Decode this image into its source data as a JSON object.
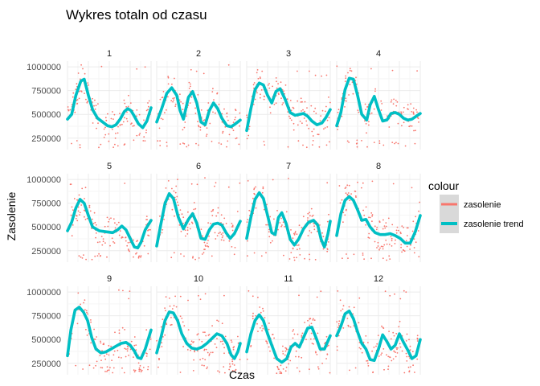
{
  "chart_data": {
    "type": "faceted-line-scatter",
    "title": "Wykres totaln od czasu",
    "xlabel": "Czas",
    "ylabel": "Zasolenie",
    "y_ticks": [
      250000,
      500000,
      750000,
      1000000
    ],
    "y_tick_labels": [
      "250000",
      "500000",
      "750000",
      "1000000"
    ],
    "ylim": [
      130000,
      1060000
    ],
    "xlim": [
      0,
      1
    ],
    "x_tick_labels_shown": false,
    "grid": true,
    "legend": {
      "title": "colour",
      "placement": "right",
      "entries": [
        {
          "label": "zasolenie",
          "color": "#F8766D",
          "kind": "points"
        },
        {
          "label": "zasolenie trend",
          "color": "#00BFC4",
          "kind": "line"
        }
      ]
    },
    "facets": [
      {
        "label": "1",
        "trend": [
          [
            0.0,
            450000
          ],
          [
            0.05,
            500000
          ],
          [
            0.1,
            700000
          ],
          [
            0.16,
            850000
          ],
          [
            0.2,
            870000
          ],
          [
            0.25,
            700000
          ],
          [
            0.3,
            550000
          ],
          [
            0.36,
            460000
          ],
          [
            0.42,
            420000
          ],
          [
            0.48,
            380000
          ],
          [
            0.53,
            370000
          ],
          [
            0.58,
            390000
          ],
          [
            0.63,
            450000
          ],
          [
            0.68,
            530000
          ],
          [
            0.72,
            560000
          ],
          [
            0.76,
            540000
          ],
          [
            0.8,
            480000
          ],
          [
            0.85,
            400000
          ],
          [
            0.9,
            360000
          ],
          [
            0.95,
            430000
          ],
          [
            1.0,
            570000
          ]
        ]
      },
      {
        "label": "2",
        "trend": [
          [
            0.0,
            420000
          ],
          [
            0.06,
            560000
          ],
          [
            0.12,
            720000
          ],
          [
            0.18,
            780000
          ],
          [
            0.24,
            700000
          ],
          [
            0.28,
            540000
          ],
          [
            0.32,
            450000
          ],
          [
            0.38,
            680000
          ],
          [
            0.43,
            740000
          ],
          [
            0.48,
            620000
          ],
          [
            0.53,
            420000
          ],
          [
            0.58,
            390000
          ],
          [
            0.63,
            540000
          ],
          [
            0.68,
            620000
          ],
          [
            0.73,
            560000
          ],
          [
            0.78,
            460000
          ],
          [
            0.84,
            380000
          ],
          [
            0.89,
            370000
          ],
          [
            0.94,
            400000
          ],
          [
            1.0,
            440000
          ]
        ]
      },
      {
        "label": "3",
        "trend": [
          [
            0.0,
            330000
          ],
          [
            0.05,
            560000
          ],
          [
            0.1,
            760000
          ],
          [
            0.15,
            830000
          ],
          [
            0.2,
            810000
          ],
          [
            0.25,
            700000
          ],
          [
            0.3,
            620000
          ],
          [
            0.35,
            740000
          ],
          [
            0.4,
            770000
          ],
          [
            0.46,
            660000
          ],
          [
            0.52,
            520000
          ],
          [
            0.58,
            490000
          ],
          [
            0.63,
            500000
          ],
          [
            0.68,
            510000
          ],
          [
            0.73,
            480000
          ],
          [
            0.78,
            430000
          ],
          [
            0.84,
            390000
          ],
          [
            0.9,
            410000
          ],
          [
            0.95,
            470000
          ],
          [
            1.0,
            550000
          ]
        ]
      },
      {
        "label": "4",
        "trend": [
          [
            0.0,
            380000
          ],
          [
            0.05,
            520000
          ],
          [
            0.1,
            760000
          ],
          [
            0.15,
            880000
          ],
          [
            0.2,
            870000
          ],
          [
            0.25,
            700000
          ],
          [
            0.3,
            500000
          ],
          [
            0.36,
            440000
          ],
          [
            0.4,
            600000
          ],
          [
            0.45,
            690000
          ],
          [
            0.5,
            550000
          ],
          [
            0.55,
            430000
          ],
          [
            0.6,
            440000
          ],
          [
            0.65,
            510000
          ],
          [
            0.7,
            520000
          ],
          [
            0.75,
            500000
          ],
          [
            0.8,
            460000
          ],
          [
            0.85,
            440000
          ],
          [
            0.9,
            450000
          ],
          [
            0.95,
            480000
          ],
          [
            1.0,
            510000
          ]
        ]
      },
      {
        "label": "5",
        "trend": [
          [
            0.0,
            460000
          ],
          [
            0.05,
            550000
          ],
          [
            0.1,
            700000
          ],
          [
            0.15,
            790000
          ],
          [
            0.2,
            750000
          ],
          [
            0.25,
            620000
          ],
          [
            0.3,
            500000
          ],
          [
            0.38,
            460000
          ],
          [
            0.46,
            450000
          ],
          [
            0.54,
            440000
          ],
          [
            0.6,
            470000
          ],
          [
            0.65,
            510000
          ],
          [
            0.7,
            470000
          ],
          [
            0.75,
            380000
          ],
          [
            0.8,
            290000
          ],
          [
            0.84,
            280000
          ],
          [
            0.88,
            340000
          ],
          [
            0.93,
            470000
          ],
          [
            1.0,
            570000
          ]
        ]
      },
      {
        "label": "6",
        "trend": [
          [
            0.0,
            300000
          ],
          [
            0.05,
            530000
          ],
          [
            0.1,
            750000
          ],
          [
            0.15,
            850000
          ],
          [
            0.2,
            800000
          ],
          [
            0.26,
            600000
          ],
          [
            0.32,
            480000
          ],
          [
            0.38,
            580000
          ],
          [
            0.43,
            640000
          ],
          [
            0.48,
            540000
          ],
          [
            0.53,
            380000
          ],
          [
            0.58,
            370000
          ],
          [
            0.63,
            470000
          ],
          [
            0.68,
            530000
          ],
          [
            0.73,
            540000
          ],
          [
            0.78,
            520000
          ],
          [
            0.83,
            440000
          ],
          [
            0.88,
            380000
          ],
          [
            0.93,
            430000
          ],
          [
            1.0,
            560000
          ]
        ]
      },
      {
        "label": "7",
        "trend": [
          [
            0.0,
            380000
          ],
          [
            0.05,
            600000
          ],
          [
            0.1,
            790000
          ],
          [
            0.15,
            860000
          ],
          [
            0.2,
            800000
          ],
          [
            0.25,
            620000
          ],
          [
            0.3,
            440000
          ],
          [
            0.34,
            420000
          ],
          [
            0.38,
            600000
          ],
          [
            0.42,
            650000
          ],
          [
            0.47,
            540000
          ],
          [
            0.52,
            370000
          ],
          [
            0.57,
            310000
          ],
          [
            0.62,
            370000
          ],
          [
            0.68,
            480000
          ],
          [
            0.74,
            550000
          ],
          [
            0.8,
            570000
          ],
          [
            0.85,
            520000
          ],
          [
            0.89,
            370000
          ],
          [
            0.93,
            290000
          ],
          [
            0.97,
            420000
          ],
          [
            1.0,
            560000
          ]
        ]
      },
      {
        "label": "8",
        "trend": [
          [
            0.0,
            410000
          ],
          [
            0.05,
            640000
          ],
          [
            0.1,
            780000
          ],
          [
            0.15,
            820000
          ],
          [
            0.2,
            780000
          ],
          [
            0.25,
            680000
          ],
          [
            0.3,
            570000
          ],
          [
            0.35,
            580000
          ],
          [
            0.4,
            500000
          ],
          [
            0.46,
            440000
          ],
          [
            0.52,
            420000
          ],
          [
            0.58,
            420000
          ],
          [
            0.64,
            430000
          ],
          [
            0.7,
            410000
          ],
          [
            0.76,
            380000
          ],
          [
            0.82,
            330000
          ],
          [
            0.88,
            330000
          ],
          [
            0.94,
            450000
          ],
          [
            1.0,
            620000
          ]
        ]
      },
      {
        "label": "9",
        "trend": [
          [
            0.0,
            330000
          ],
          [
            0.04,
            600000
          ],
          [
            0.09,
            810000
          ],
          [
            0.14,
            840000
          ],
          [
            0.19,
            790000
          ],
          [
            0.24,
            700000
          ],
          [
            0.29,
            520000
          ],
          [
            0.34,
            400000
          ],
          [
            0.4,
            360000
          ],
          [
            0.46,
            370000
          ],
          [
            0.52,
            400000
          ],
          [
            0.58,
            430000
          ],
          [
            0.64,
            460000
          ],
          [
            0.7,
            470000
          ],
          [
            0.75,
            440000
          ],
          [
            0.8,
            380000
          ],
          [
            0.84,
            310000
          ],
          [
            0.88,
            300000
          ],
          [
            0.93,
            400000
          ],
          [
            1.0,
            600000
          ]
        ]
      },
      {
        "label": "10",
        "trend": [
          [
            0.0,
            360000
          ],
          [
            0.05,
            520000
          ],
          [
            0.1,
            700000
          ],
          [
            0.15,
            790000
          ],
          [
            0.2,
            780000
          ],
          [
            0.25,
            700000
          ],
          [
            0.3,
            560000
          ],
          [
            0.36,
            460000
          ],
          [
            0.42,
            410000
          ],
          [
            0.48,
            400000
          ],
          [
            0.54,
            420000
          ],
          [
            0.6,
            460000
          ],
          [
            0.66,
            510000
          ],
          [
            0.72,
            560000
          ],
          [
            0.78,
            540000
          ],
          [
            0.84,
            460000
          ],
          [
            0.89,
            340000
          ],
          [
            0.93,
            300000
          ],
          [
            0.97,
            370000
          ],
          [
            1.0,
            460000
          ]
        ]
      },
      {
        "label": "11",
        "trend": [
          [
            0.0,
            370000
          ],
          [
            0.05,
            560000
          ],
          [
            0.1,
            700000
          ],
          [
            0.15,
            760000
          ],
          [
            0.2,
            700000
          ],
          [
            0.25,
            560000
          ],
          [
            0.3,
            440000
          ],
          [
            0.36,
            300000
          ],
          [
            0.42,
            260000
          ],
          [
            0.48,
            300000
          ],
          [
            0.53,
            420000
          ],
          [
            0.58,
            460000
          ],
          [
            0.63,
            420000
          ],
          [
            0.68,
            520000
          ],
          [
            0.73,
            620000
          ],
          [
            0.78,
            630000
          ],
          [
            0.83,
            520000
          ],
          [
            0.88,
            400000
          ],
          [
            0.93,
            400000
          ],
          [
            1.0,
            540000
          ]
        ]
      },
      {
        "label": "12",
        "trend": [
          [
            0.0,
            540000
          ],
          [
            0.05,
            640000
          ],
          [
            0.1,
            770000
          ],
          [
            0.15,
            800000
          ],
          [
            0.2,
            720000
          ],
          [
            0.25,
            580000
          ],
          [
            0.3,
            460000
          ],
          [
            0.35,
            400000
          ],
          [
            0.4,
            290000
          ],
          [
            0.45,
            280000
          ],
          [
            0.5,
            400000
          ],
          [
            0.55,
            550000
          ],
          [
            0.6,
            480000
          ],
          [
            0.65,
            400000
          ],
          [
            0.7,
            440000
          ],
          [
            0.75,
            560000
          ],
          [
            0.8,
            470000
          ],
          [
            0.85,
            390000
          ],
          [
            0.9,
            300000
          ],
          [
            0.95,
            330000
          ],
          [
            1.0,
            500000
          ]
        ]
      }
    ]
  }
}
